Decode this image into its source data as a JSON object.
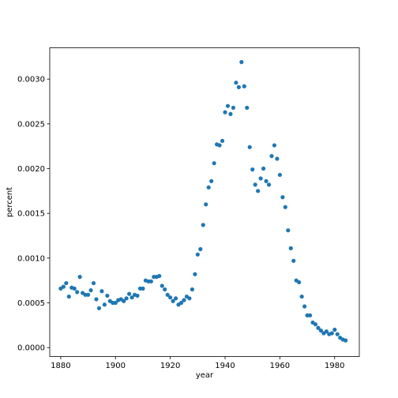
{
  "chart_data": {
    "type": "scatter",
    "title": "",
    "xlabel": "year",
    "ylabel": "percent",
    "xlim": [
      1876,
      1989
    ],
    "ylim": [
      -0.0001,
      0.00335
    ],
    "xticks": [
      1880,
      1900,
      1920,
      1940,
      1960,
      1980
    ],
    "xtick_labels": [
      "1880",
      "1900",
      "1920",
      "1940",
      "1960",
      "1980"
    ],
    "yticks": [
      0.0,
      0.0005,
      0.001,
      0.0015,
      0.002,
      0.0025,
      0.003
    ],
    "ytick_labels": [
      "0.0000",
      "0.0005",
      "0.0010",
      "0.0015",
      "0.0020",
      "0.0025",
      "0.0030"
    ],
    "grid": false,
    "legend": "none",
    "marker_color": "#1f77b4",
    "series": [
      {
        "x": [
          1880,
          1881,
          1882,
          1883,
          1884,
          1885,
          1886,
          1887,
          1888,
          1889,
          1890,
          1891,
          1892,
          1893,
          1894,
          1895,
          1896,
          1897,
          1898,
          1899,
          1900,
          1901,
          1902,
          1903,
          1904,
          1905,
          1906,
          1907,
          1908,
          1909,
          1910,
          1911,
          1912,
          1913,
          1914,
          1915,
          1916,
          1917,
          1918,
          1919,
          1920,
          1921,
          1922,
          1923,
          1924,
          1925,
          1926,
          1927,
          1928,
          1929,
          1930,
          1931,
          1932,
          1933,
          1934,
          1935,
          1936,
          1937,
          1938,
          1939,
          1940,
          1941,
          1942,
          1943,
          1944,
          1945,
          1946,
          1947,
          1948,
          1949,
          1950,
          1951,
          1952,
          1953,
          1954,
          1955,
          1956,
          1957,
          1958,
          1959,
          1960,
          1961,
          1962,
          1963,
          1964,
          1965,
          1966,
          1967,
          1968,
          1969,
          1970,
          1971,
          1972,
          1973,
          1974,
          1975,
          1976,
          1977,
          1978,
          1979,
          1980,
          1981,
          1982,
          1983,
          1984
        ],
        "y": [
          0.00066,
          0.00068,
          0.00072,
          0.00057,
          0.00067,
          0.00066,
          0.00062,
          0.00079,
          0.00061,
          0.00059,
          0.00059,
          0.00064,
          0.00072,
          0.00054,
          0.00044,
          0.00063,
          0.00048,
          0.00058,
          0.00052,
          0.0005,
          0.0005,
          0.00053,
          0.00054,
          0.00052,
          0.00055,
          0.0006,
          0.00056,
          0.00059,
          0.00058,
          0.00066,
          0.00066,
          0.00075,
          0.00074,
          0.00074,
          0.00079,
          0.00079,
          0.0008,
          0.00069,
          0.00065,
          0.00059,
          0.00056,
          0.00052,
          0.00055,
          0.00048,
          0.0005,
          0.00053,
          0.00057,
          0.00055,
          0.00065,
          0.00082,
          0.00104,
          0.0011,
          0.00137,
          0.0016,
          0.00179,
          0.00186,
          0.00206,
          0.00227,
          0.00226,
          0.00231,
          0.00263,
          0.0027,
          0.00261,
          0.00268,
          0.00296,
          0.00291,
          0.00319,
          0.00292,
          0.00268,
          0.00224,
          0.00199,
          0.00182,
          0.00175,
          0.00189,
          0.002,
          0.00186,
          0.00182,
          0.00214,
          0.00226,
          0.00211,
          0.00193,
          0.00168,
          0.00157,
          0.00131,
          0.00111,
          0.00097,
          0.00075,
          0.00073,
          0.00057,
          0.00046,
          0.00036,
          0.00036,
          0.00028,
          0.00026,
          0.00022,
          0.00019,
          0.00016,
          0.00018,
          0.00015,
          0.00016,
          0.0002,
          0.00015,
          0.00011,
          9e-05,
          8e-05
        ]
      }
    ]
  }
}
